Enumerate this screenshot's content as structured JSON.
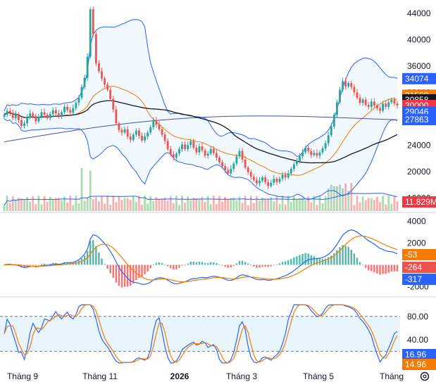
{
  "chart_data": [
    {
      "type": "candlestick",
      "panel": "price",
      "x_ticks": [
        "Tháng 9",
        "Tháng 11",
        "2026",
        "Tháng 3",
        "Tháng 5",
        "Tháng"
      ],
      "y_ticks": [
        "44000",
        "40000",
        "36000",
        "32000",
        "28000",
        "24000",
        "20000",
        "16000"
      ],
      "ylim": [
        14000,
        46000
      ],
      "bars": 138,
      "close_series": [
        28600,
        29200,
        28900,
        28100,
        28700,
        27800,
        26900,
        27300,
        28200,
        28800,
        28400,
        27600,
        28300,
        29000,
        28600,
        28100,
        28700,
        29300,
        28800,
        28400,
        29000,
        29800,
        29300,
        28900,
        29600,
        30400,
        31200,
        32800,
        34200,
        37400,
        44600,
        40800,
        36400,
        35200,
        34100,
        33200,
        32400,
        31000,
        29400,
        27300,
        26300,
        25900,
        26400,
        25300,
        24800,
        25600,
        26200,
        25400,
        24700,
        25300,
        25900,
        26700,
        27800,
        27100,
        26400,
        25600,
        24600,
        23400,
        22600,
        22100,
        22700,
        23400,
        24100,
        23400,
        24000,
        24600,
        23600,
        22900,
        23800,
        23200,
        22400,
        22700,
        23400,
        22800,
        22100,
        21400,
        20800,
        20200,
        19700,
        20400,
        21200,
        22300,
        23100,
        21800,
        20600,
        19900,
        19200,
        18700,
        18200,
        18600,
        19100,
        18400,
        17800,
        18300,
        18900,
        18400,
        18900,
        19500,
        19100,
        19700,
        20400,
        21100,
        21600,
        22300,
        22900,
        23600,
        23100,
        22500,
        22800,
        22400,
        22900,
        23500,
        24300,
        25500,
        26800,
        28600,
        30500,
        32400,
        33700,
        32900,
        33400,
        32800,
        32000,
        31200,
        30400,
        30900,
        30100,
        29800,
        30600,
        30000,
        29600,
        29200,
        30300,
        29800,
        30500,
        30900,
        30300,
        30000
      ],
      "series": [
        {
          "name": "",
          "values": []
        }
      ],
      "overlays": [
        "bollinger-upper",
        "bollinger-basis",
        "bollinger-lower",
        "ma-black",
        "ma-blue"
      ],
      "price_labels": [
        {
          "value": "34074",
          "role": "bollinger-upper",
          "color": "#2962ff"
        },
        {
          "value": "31560",
          "role": "bollinger-basis",
          "color": "#f57c00"
        },
        {
          "value": "30858",
          "role": "ma-black",
          "color": "#131722"
        },
        {
          "value": "30000",
          "role": "last-close",
          "color": "#f23645"
        },
        {
          "value": "29046",
          "role": "bollinger-lower",
          "color": "#2962ff"
        },
        {
          "value": "27863",
          "role": "ma-blue",
          "color": "#2962ff"
        }
      ],
      "volume_label": "11.829M"
    },
    {
      "type": "bar",
      "panel": "macd",
      "y_ticks": [
        "4000",
        "2000",
        "-2000"
      ],
      "ylim": [
        -2800,
        4600
      ],
      "labels": [
        {
          "value": "-53",
          "color": "#f57c00"
        },
        {
          "value": "-264",
          "color": "#ef5350"
        },
        {
          "value": "-317",
          "color": "#2962ff"
        }
      ]
    },
    {
      "type": "line",
      "panel": "stochastic",
      "y_ticks": [
        "80.00",
        "40.00"
      ],
      "ylim": [
        -5,
        110
      ],
      "bands": [
        80,
        20
      ],
      "labels": [
        {
          "value": "16.96",
          "color": "#2962ff"
        },
        {
          "value": "14.96",
          "color": "#f57c00"
        }
      ]
    }
  ],
  "colors": {
    "up": "#26a69a",
    "down": "#ef5350",
    "band_line": "#2962ff",
    "basis": "#f57c00",
    "ma_black": "#131722",
    "macd_line": "#2962ff",
    "signal": "#f57c00",
    "stoch_k": "#2962ff",
    "stoch_d": "#f57c00",
    "stoch_fill": "#e3f2fd"
  },
  "icons": {
    "settings": "gear-icon"
  }
}
